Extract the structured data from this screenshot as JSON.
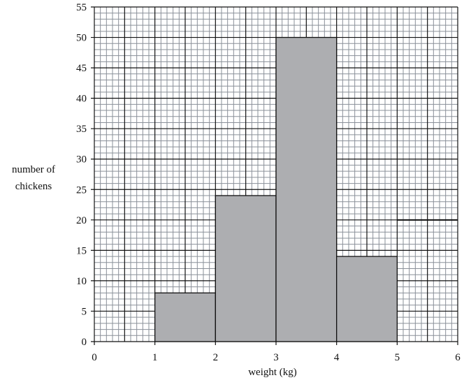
{
  "chart_data": {
    "type": "bar",
    "subtype": "histogram",
    "xlabel": "weight (kg)",
    "ylabel": [
      "number of",
      "chickens"
    ],
    "xlim": [
      0,
      6
    ],
    "ylim": [
      0,
      55
    ],
    "xticks": [
      "0",
      "1",
      "2",
      "3",
      "4",
      "5",
      "6"
    ],
    "yticks": [
      "0",
      "5",
      "10",
      "15",
      "20",
      "25",
      "30",
      "35",
      "40",
      "45",
      "50",
      "55"
    ],
    "grid": true,
    "bins": [
      {
        "from": 1,
        "to": 2,
        "value": 8
      },
      {
        "from": 2,
        "to": 3,
        "value": 24
      },
      {
        "from": 3,
        "to": 4,
        "value": 50
      },
      {
        "from": 4,
        "to": 5,
        "value": 14
      }
    ],
    "partial_bar": {
      "from": 5,
      "to": 6,
      "value": 20
    },
    "colors": {
      "bar": "#adaeb1",
      "minor_grid": "#8a9099",
      "major_grid": "#111111"
    }
  }
}
